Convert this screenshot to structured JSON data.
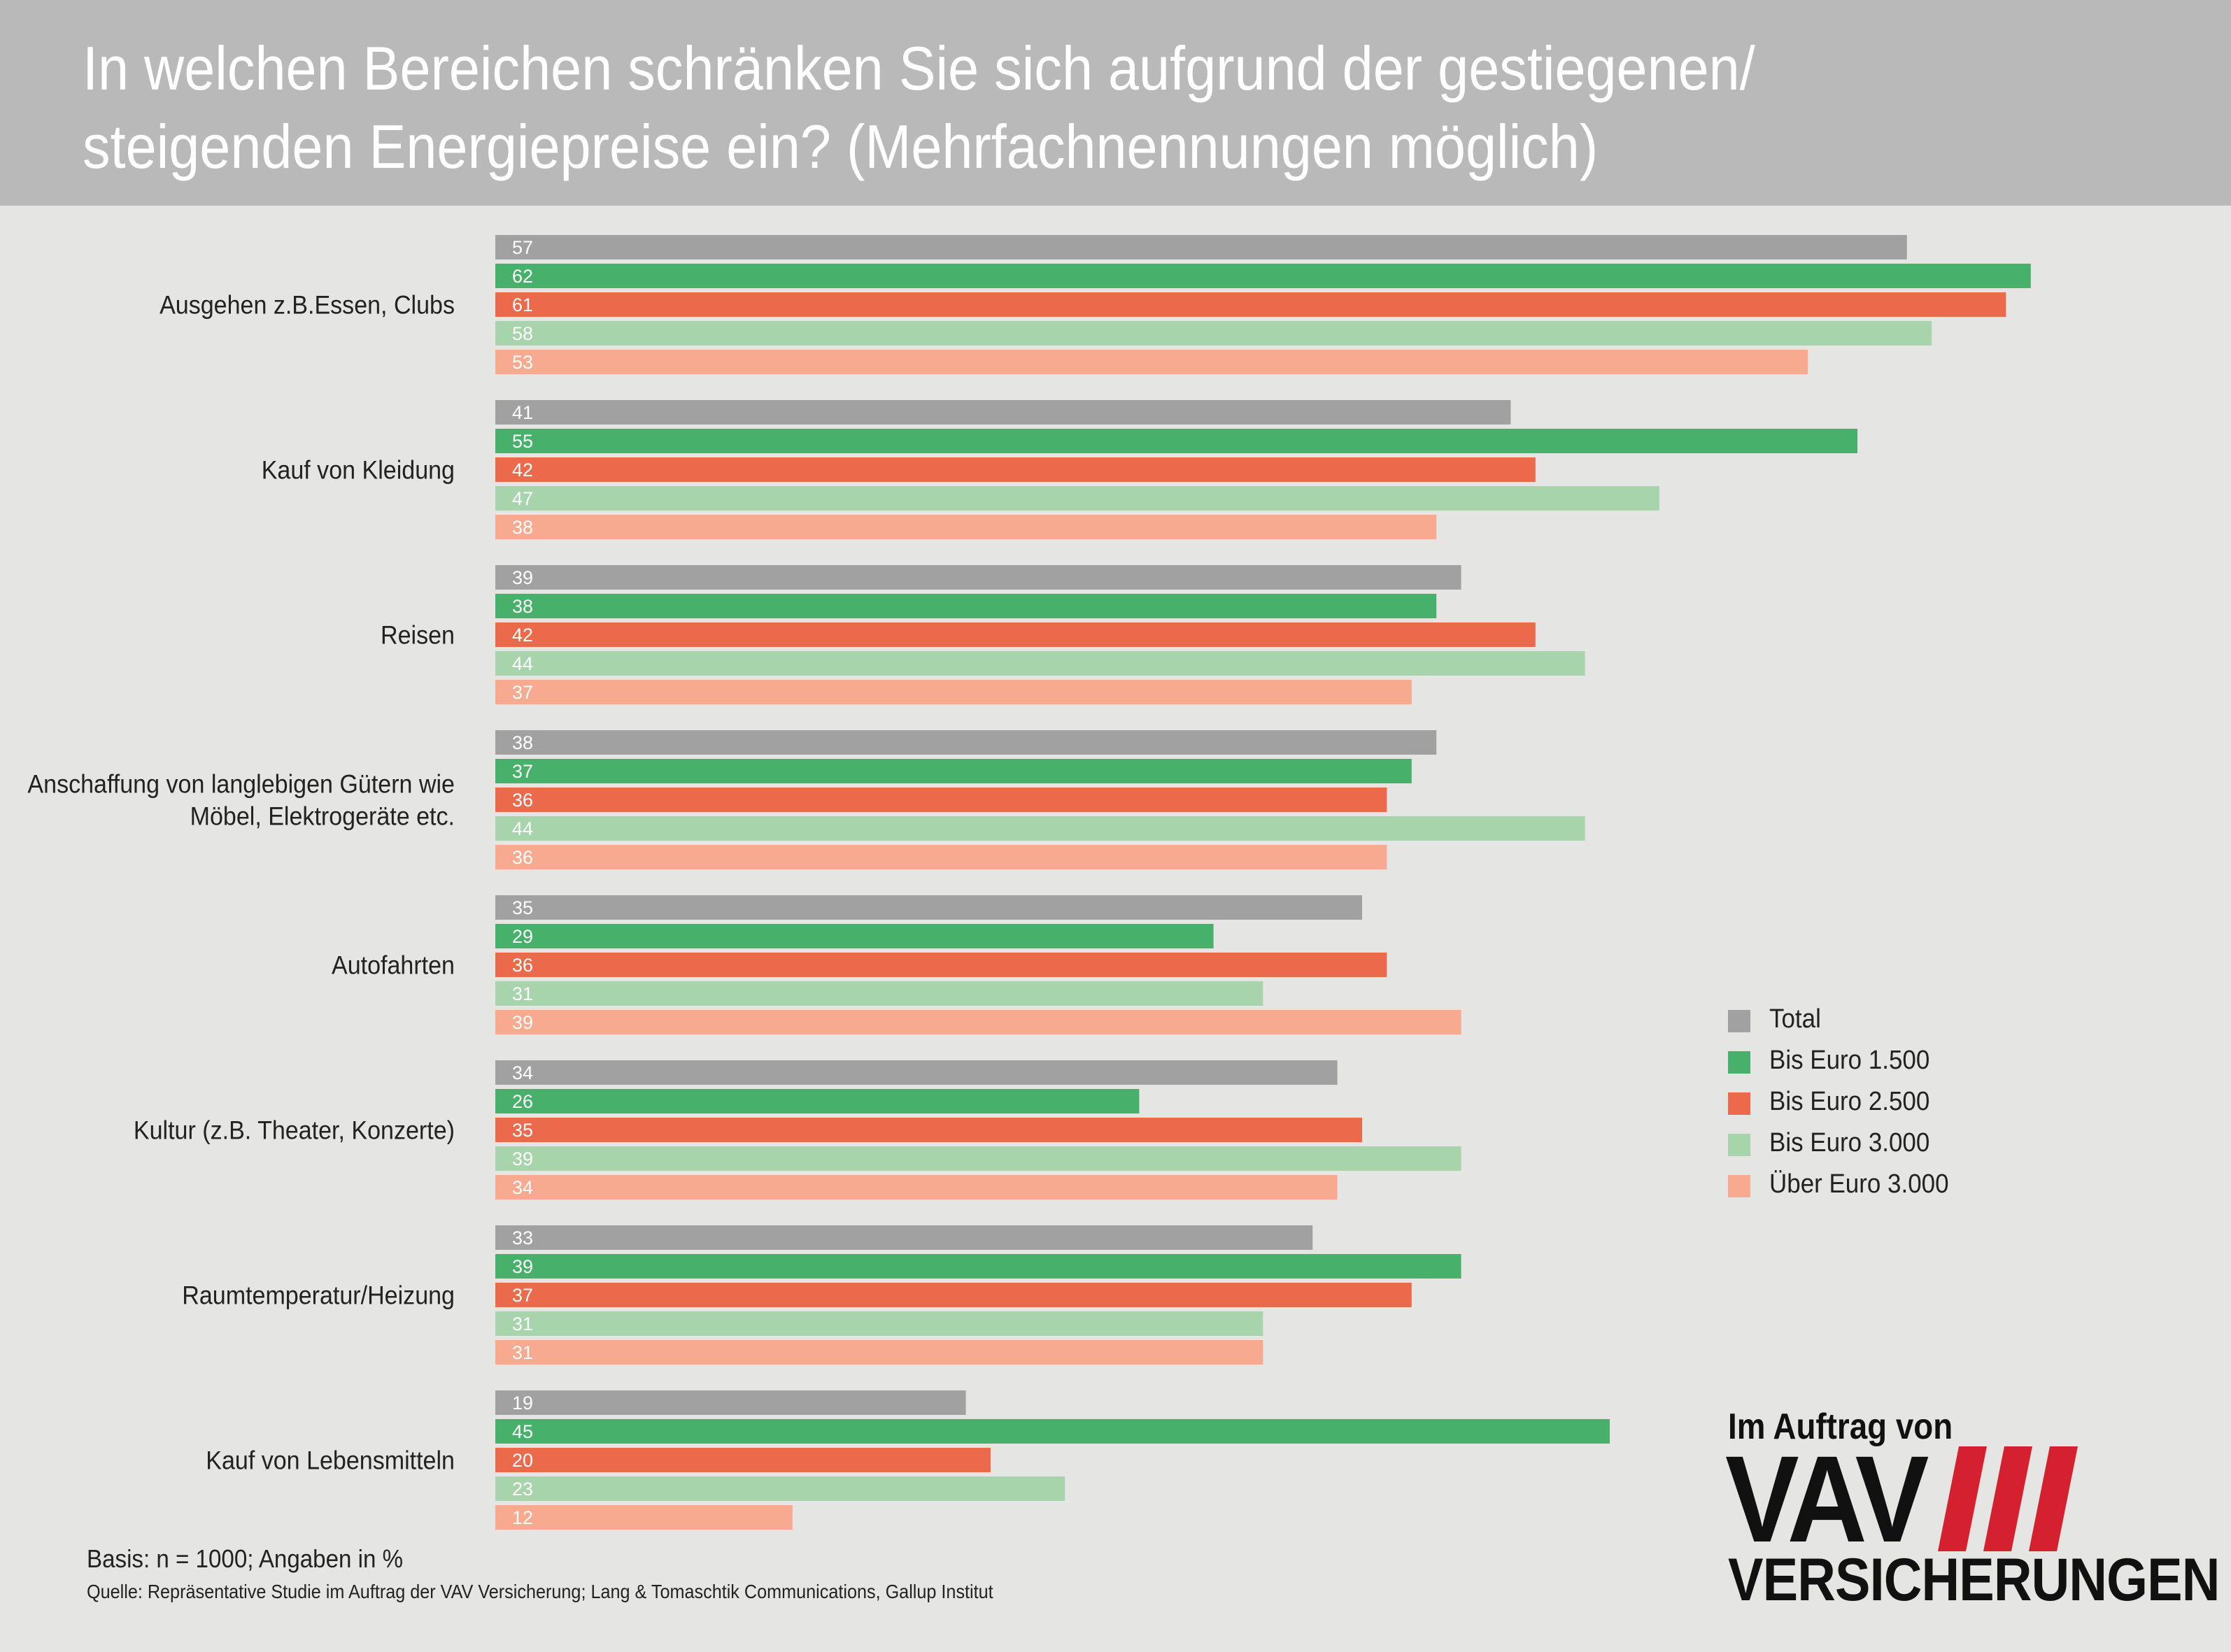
{
  "title": {
    "line1": "In welchen Bereichen schränken Sie sich aufgrund der gestiegenen/",
    "line2": "steigenden Energiepreise ein? (Mehrfachnennungen möglich)"
  },
  "chart_data": {
    "type": "bar",
    "orientation": "horizontal",
    "title": "In welchen Bereichen schränken Sie sich aufgrund der gestiegenen/ steigenden Energiepreise ein? (Mehrfachnennungen möglich)",
    "categories": [
      "Ausgehen z.B.Essen, Clubs",
      "Kauf von Kleidung",
      "Reisen",
      "Anschaffung von langlebigen Gütern wie Möbel, Elektrogeräte etc.",
      "Autofahrten",
      "Kultur (z.B. Theater, Konzerte)",
      "Raumtemperatur/Heizung",
      "Kauf von Lebensmitteln"
    ],
    "series": [
      {
        "name": "Total",
        "color": "#a1a1a1",
        "values": [
          57,
          41,
          39,
          38,
          35,
          34,
          33,
          19
        ]
      },
      {
        "name": "Bis Euro 1.500",
        "color": "#47b06b",
        "values": [
          62,
          55,
          38,
          37,
          29,
          26,
          39,
          45
        ]
      },
      {
        "name": "Bis Euro 2.500",
        "color": "#ec6a4c",
        "values": [
          61,
          42,
          42,
          36,
          36,
          35,
          37,
          20
        ]
      },
      {
        "name": "Bis Euro 3.000",
        "color": "#a7d4aa",
        "values": [
          58,
          47,
          44,
          44,
          31,
          39,
          31,
          23
        ]
      },
      {
        "name": "Über Euro 3.000",
        "color": "#f7aa8f",
        "values": [
          53,
          38,
          37,
          36,
          39,
          34,
          31,
          12
        ]
      }
    ],
    "xlim": [
      0,
      62
    ],
    "data_labels": true,
    "grid": false,
    "legend_position": "right"
  },
  "footnotes": {
    "basis": "Basis: n = 1000; Angaben in %",
    "source": "Quelle: Repräsentative Studie im Auftrag der VAV Versicherung; Lang & Tomaschtik Communications, Gallup Institut"
  },
  "logo": {
    "top": "Im Auftrag von",
    "main": "VAV",
    "bottom": "VERSICHERUNGEN",
    "accent_color": "#d4202f"
  }
}
